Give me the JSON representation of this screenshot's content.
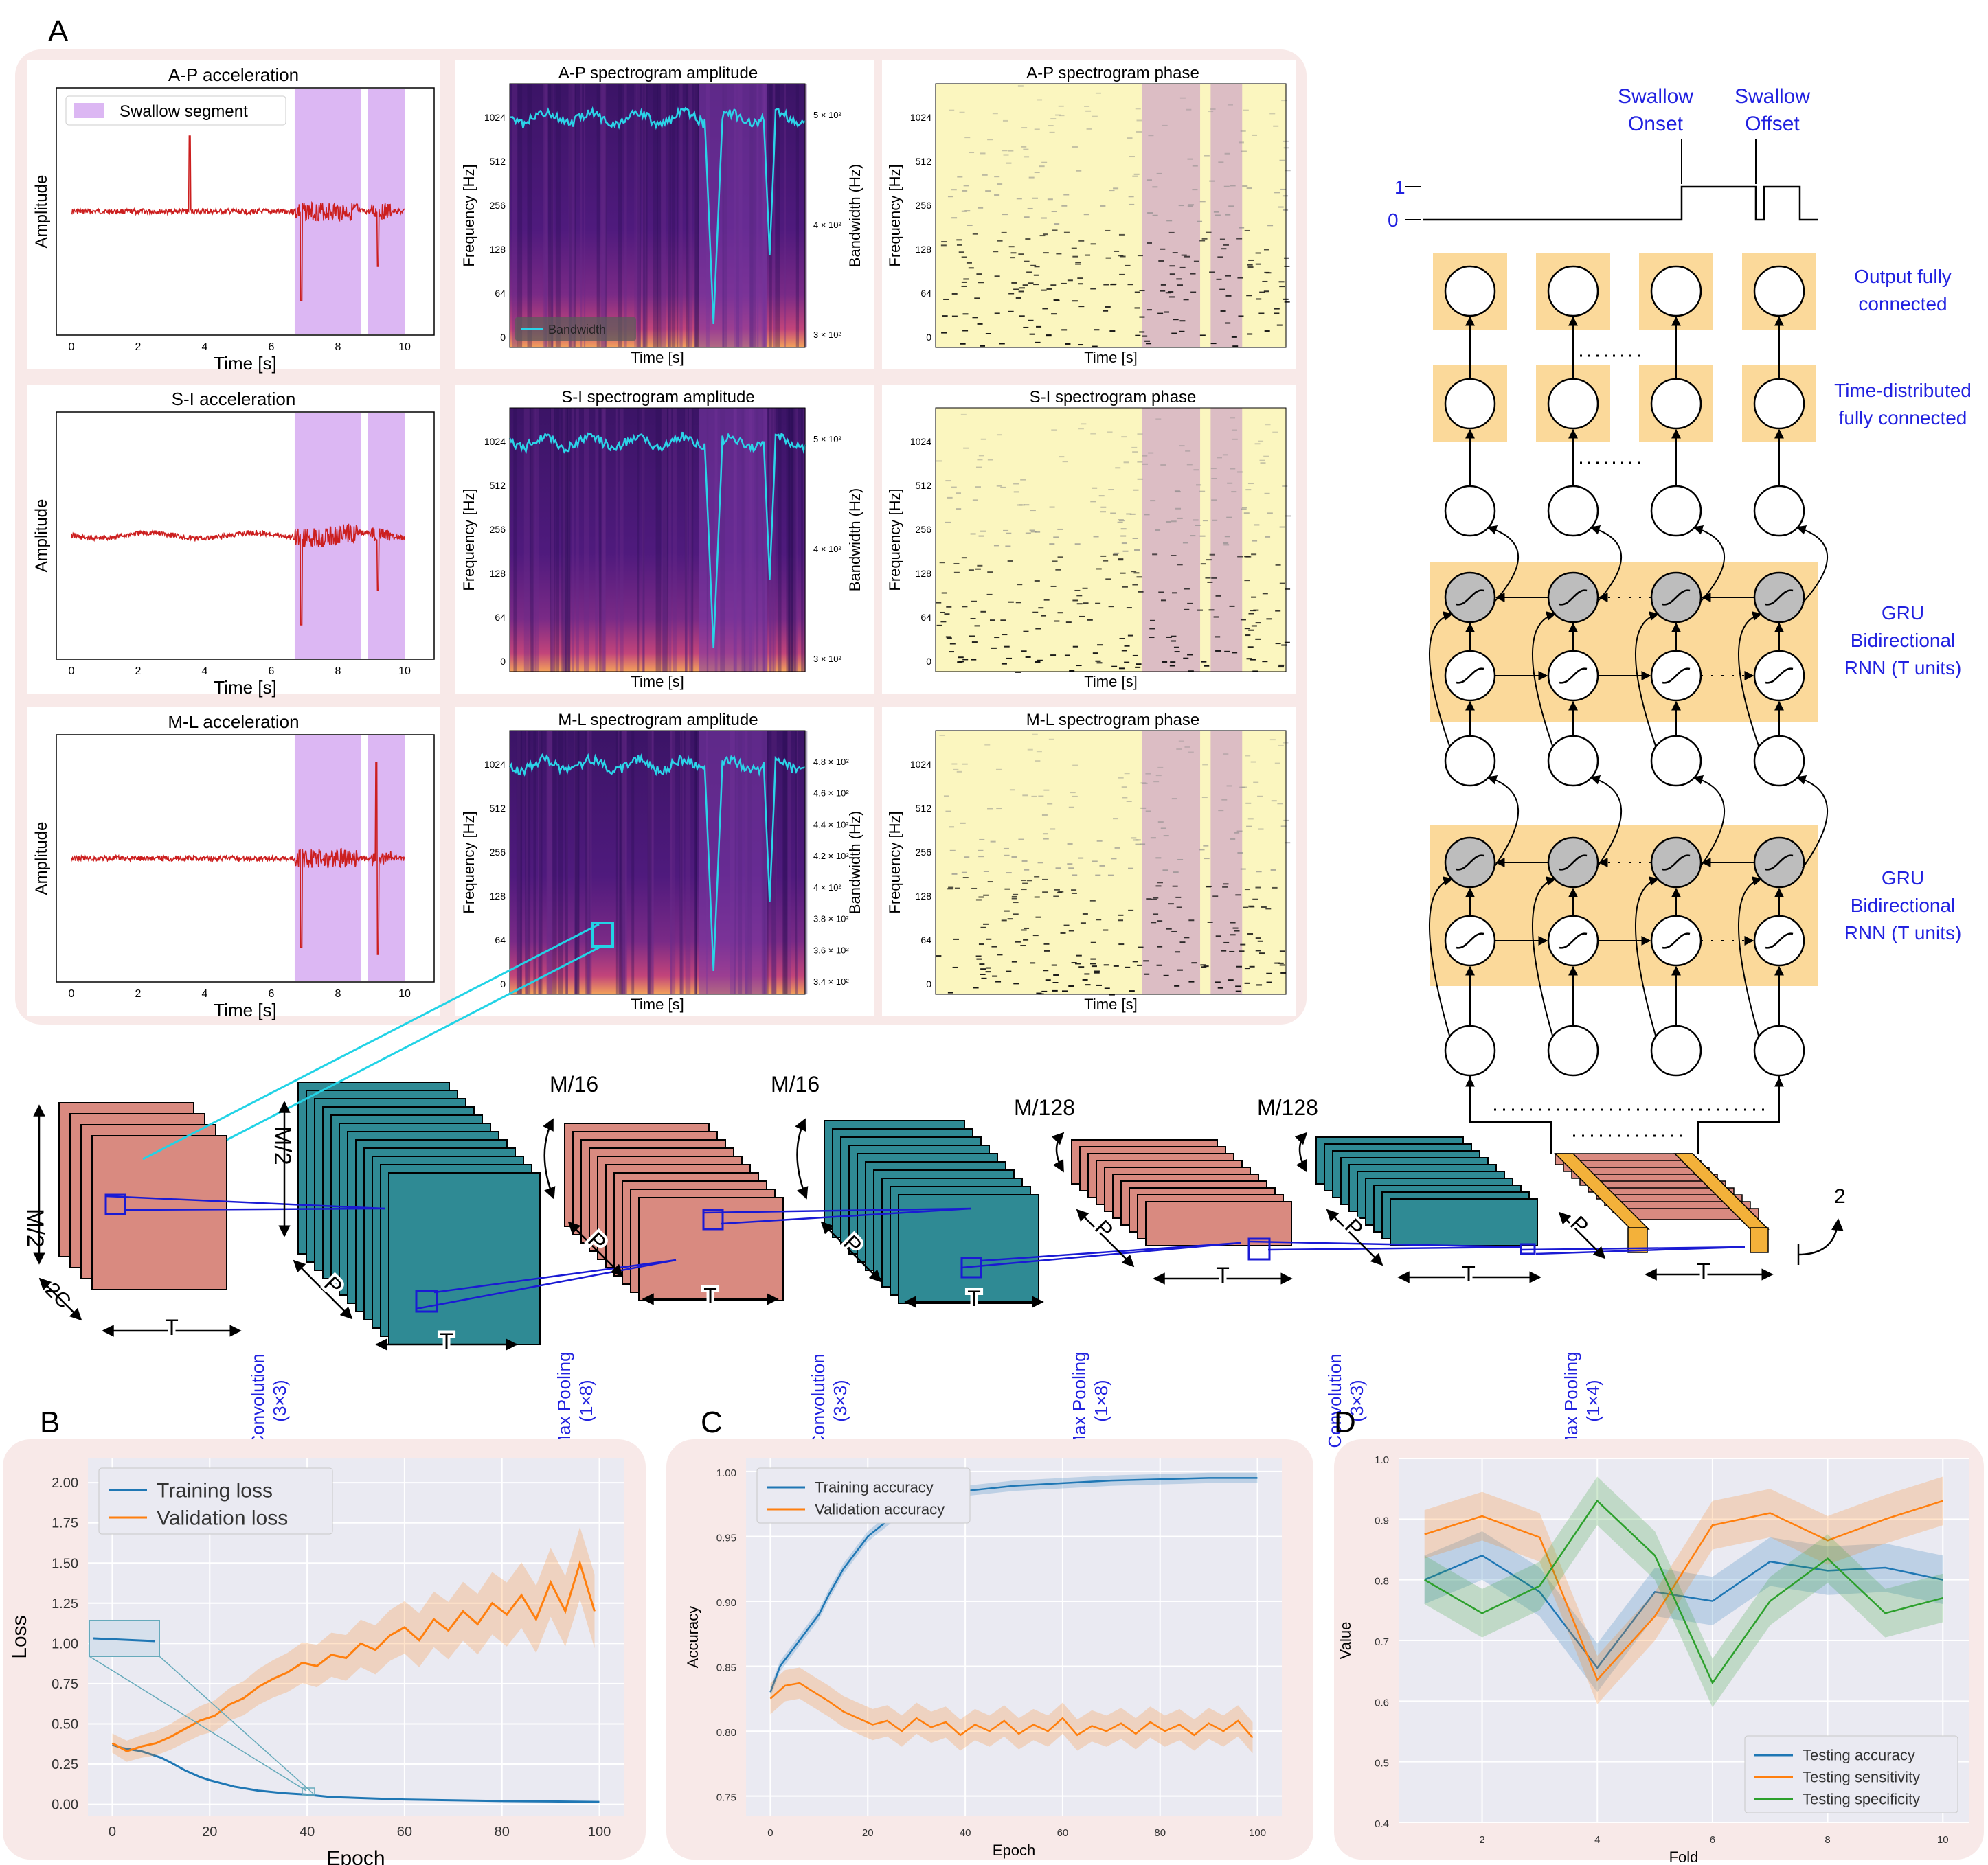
{
  "labels": {
    "A": "A",
    "B": "B",
    "C": "C",
    "D": "D"
  },
  "panelA": {
    "row1": {
      "accel_title": "A-P acceleration",
      "amp_title": "A-P spectrogram amplitude",
      "phase_title": "A-P spectrogram phase",
      "legend": "Swallow segment",
      "bandwidth_legend": "Bandwidth",
      "bw_ticks": [
        "5 × 10²",
        "4 × 10²",
        "3 × 10²"
      ]
    },
    "row2": {
      "accel_title": "S-I acceleration",
      "amp_title": "S-I spectrogram amplitude",
      "phase_title": "S-I spectrogram phase",
      "bw_ticks": [
        "5 × 10²",
        "4 × 10²",
        "3 × 10²"
      ]
    },
    "row3": {
      "accel_title": "M-L acceleration",
      "amp_title": "M-L spectrogram amplitude",
      "phase_title": "M-L spectrogram phase",
      "bw_ticks": [
        "4.8 × 10²",
        "4.6 × 10²",
        "4.4 × 10²",
        "4.2 × 10²",
        "4 × 10²",
        "3.8 × 10²",
        "3.6 × 10²",
        "3.4 × 10²"
      ]
    },
    "amplitude_label": "Amplitude",
    "time_label": "Time [s]",
    "freq_label": "Frequency [Hz]",
    "bandwidth_label": "Bandwidth (Hz)",
    "time_ticks": [
      "0",
      "2",
      "4",
      "6",
      "8",
      "10"
    ],
    "freq_ticks": [
      "1024",
      "512",
      "256",
      "128",
      "64",
      "0"
    ]
  },
  "rnn": {
    "onset": [
      "Swallow",
      "Onset"
    ],
    "offset": [
      "Swallow",
      "Offset"
    ],
    "level1": "1",
    "level0": "0",
    "output_label": [
      "Output fully",
      "connected"
    ],
    "time_dist_label": [
      "Time-distributed",
      "fully connected"
    ],
    "gru_label": [
      "GRU",
      "Bidirectional",
      "RNN (T units)"
    ]
  },
  "cnn": {
    "m2": "M/2",
    "two_c": "2C",
    "t": "T",
    "p": "P",
    "m16": "M/16",
    "m128": "M/128",
    "two": "2",
    "conv": [
      "Convolution",
      "(3×3)"
    ],
    "maxpool8": [
      "Max Pooling",
      "(1×8)"
    ],
    "maxpool4": [
      "Max Pooling",
      "(1×4)"
    ]
  },
  "chart_data": [
    {
      "type": "line",
      "panel": "B",
      "xlabel": "Epoch",
      "ylabel": "Loss",
      "xlim": [
        -5,
        105
      ],
      "ylim": [
        -0.07,
        2.15
      ],
      "xticks": [
        0,
        20,
        40,
        60,
        80,
        100
      ],
      "yticks": [
        "0.00",
        "0.25",
        "0.50",
        "0.75",
        "1.00",
        "1.25",
        "1.50",
        "1.75",
        "2.00"
      ],
      "legend_position": "top-left",
      "series": [
        {
          "name": "Training loss",
          "color": "#1f77b4",
          "x": [
            0,
            2,
            4,
            6,
            8,
            10,
            12,
            15,
            18,
            20,
            25,
            30,
            35,
            40,
            45,
            50,
            60,
            70,
            80,
            90,
            100
          ],
          "values": [
            0.37,
            0.35,
            0.34,
            0.33,
            0.31,
            0.29,
            0.26,
            0.21,
            0.17,
            0.15,
            0.11,
            0.085,
            0.07,
            0.06,
            0.045,
            0.04,
            0.03,
            0.025,
            0.02,
            0.018,
            0.015
          ]
        },
        {
          "name": "Validation loss",
          "color": "#ff7f0e",
          "x": [
            0,
            3,
            6,
            9,
            12,
            15,
            18,
            21,
            24,
            27,
            30,
            33,
            36,
            39,
            42,
            45,
            48,
            51,
            54,
            57,
            60,
            63,
            66,
            69,
            72,
            75,
            78,
            81,
            84,
            87,
            90,
            93,
            96,
            99
          ],
          "values": [
            0.38,
            0.33,
            0.36,
            0.38,
            0.42,
            0.47,
            0.52,
            0.55,
            0.62,
            0.66,
            0.73,
            0.78,
            0.82,
            0.88,
            0.86,
            0.93,
            0.91,
            1.0,
            0.96,
            1.05,
            1.1,
            1.02,
            1.15,
            1.08,
            1.2,
            1.12,
            1.25,
            1.18,
            1.3,
            1.15,
            1.38,
            1.2,
            1.5,
            1.2
          ]
        }
      ]
    },
    {
      "type": "line",
      "panel": "C",
      "xlabel": "Epoch",
      "ylabel": "Accuracy",
      "xlim": [
        -5,
        105
      ],
      "ylim": [
        0.735,
        1.01
      ],
      "xticks": [
        0,
        20,
        40,
        60,
        80,
        100
      ],
      "yticks": [
        "0.75",
        "0.80",
        "0.85",
        "0.90",
        "0.95",
        "1.00"
      ],
      "legend_position": "top-left",
      "series": [
        {
          "name": "Training accuracy",
          "color": "#1f77b4",
          "x": [
            0,
            2,
            4,
            6,
            8,
            10,
            12,
            15,
            18,
            20,
            25,
            30,
            35,
            40,
            50,
            60,
            70,
            80,
            90,
            100
          ],
          "values": [
            0.83,
            0.85,
            0.86,
            0.87,
            0.88,
            0.89,
            0.905,
            0.925,
            0.94,
            0.95,
            0.965,
            0.975,
            0.98,
            0.985,
            0.989,
            0.991,
            0.993,
            0.994,
            0.995,
            0.995
          ]
        },
        {
          "name": "Validation accuracy",
          "color": "#ff7f0e",
          "x": [
            0,
            3,
            6,
            9,
            12,
            15,
            18,
            21,
            24,
            27,
            30,
            33,
            36,
            39,
            42,
            45,
            48,
            51,
            54,
            57,
            60,
            63,
            66,
            69,
            72,
            75,
            78,
            81,
            84,
            87,
            90,
            93,
            96,
            99
          ],
          "values": [
            0.825,
            0.835,
            0.837,
            0.83,
            0.823,
            0.815,
            0.81,
            0.805,
            0.808,
            0.8,
            0.81,
            0.803,
            0.807,
            0.797,
            0.805,
            0.8,
            0.808,
            0.798,
            0.805,
            0.8,
            0.81,
            0.797,
            0.804,
            0.8,
            0.806,
            0.798,
            0.807,
            0.8,
            0.805,
            0.797,
            0.806,
            0.8,
            0.808,
            0.795
          ]
        }
      ]
    },
    {
      "type": "line",
      "panel": "D",
      "xlabel": "Fold",
      "ylabel": "Value",
      "xlim": [
        0.55,
        10.45
      ],
      "ylim": [
        0.4,
        1.0
      ],
      "xticks": [
        2,
        4,
        6,
        8,
        10
      ],
      "yticks": [
        "0.4",
        "0.5",
        "0.6",
        "0.7",
        "0.8",
        "0.9",
        "1.0"
      ],
      "legend_position": "bottom-right",
      "series": [
        {
          "name": "Testing accuracy",
          "color": "#1f77b4",
          "x": [
            1,
            2,
            3,
            4,
            5,
            6,
            7,
            8,
            9,
            10
          ],
          "values": [
            0.8,
            0.84,
            0.78,
            0.655,
            0.78,
            0.765,
            0.83,
            0.815,
            0.82,
            0.8
          ]
        },
        {
          "name": "Testing sensitivity",
          "color": "#ff7f0e",
          "x": [
            1,
            2,
            3,
            4,
            5,
            6,
            7,
            8,
            9,
            10
          ],
          "values": [
            0.875,
            0.905,
            0.87,
            0.635,
            0.74,
            0.89,
            0.91,
            0.865,
            0.9,
            0.93
          ]
        },
        {
          "name": "Testing specificity",
          "color": "#2ca02c",
          "x": [
            1,
            2,
            3,
            4,
            5,
            6,
            7,
            8,
            9,
            10
          ],
          "values": [
            0.8,
            0.745,
            0.79,
            0.93,
            0.84,
            0.63,
            0.765,
            0.835,
            0.745,
            0.77
          ]
        }
      ]
    }
  ]
}
